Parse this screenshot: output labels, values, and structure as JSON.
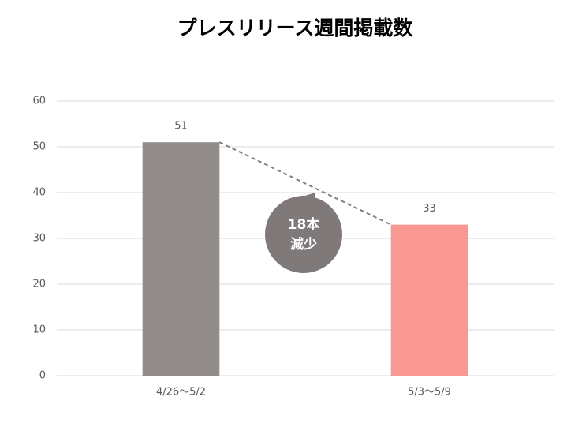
{
  "chart_data": {
    "type": "bar",
    "title": "プレスリリース週間掲載数",
    "categories": [
      "4/26〜5/2",
      "5/3〜5/9"
    ],
    "values": [
      51,
      33
    ],
    "colors": [
      "#928c8a",
      "#f99893"
    ],
    "ylim": [
      0,
      60
    ],
    "yticks": [
      0,
      10,
      20,
      30,
      40,
      50,
      60
    ],
    "grid": true,
    "annotation": [
      "18本",
      "減少"
    ]
  }
}
